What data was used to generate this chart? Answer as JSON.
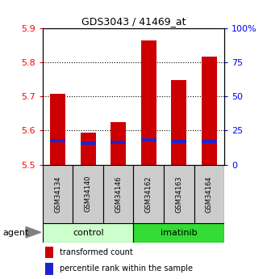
{
  "title": "GDS3043 / 41469_at",
  "samples": [
    "GSM34134",
    "GSM34140",
    "GSM34146",
    "GSM34162",
    "GSM34163",
    "GSM34164"
  ],
  "groups": [
    "control",
    "control",
    "control",
    "imatinib",
    "imatinib",
    "imatinib"
  ],
  "transformed_counts": [
    5.706,
    5.593,
    5.625,
    5.863,
    5.748,
    5.816
  ],
  "percentile_ranks": [
    5.57,
    5.563,
    5.565,
    5.572,
    5.568,
    5.568
  ],
  "y_min": 5.5,
  "y_max": 5.9,
  "y_ticks": [
    5.5,
    5.6,
    5.7,
    5.8,
    5.9
  ],
  "y2_ticks": [
    0,
    25,
    50,
    75,
    100
  ],
  "y2_labels": [
    "0",
    "25",
    "50",
    "75",
    "100%"
  ],
  "bar_color": "#cc0000",
  "percentile_color": "#2222cc",
  "control_bg_light": "#ccffcc",
  "imatinib_bg_dark": "#33dd33",
  "sample_bg": "#cccccc",
  "bar_width": 0.5,
  "legend_items": [
    "transformed count",
    "percentile rank within the sample"
  ]
}
